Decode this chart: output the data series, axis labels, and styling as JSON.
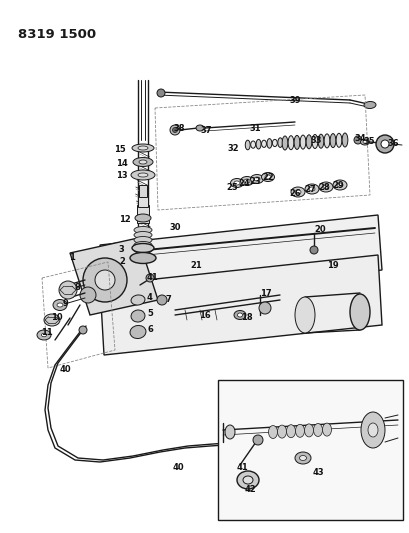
{
  "title": "8319 1500",
  "bg_color": "#ffffff",
  "line_color": "#1a1a1a",
  "label_color": "#111111",
  "fig_width": 4.1,
  "fig_height": 5.33,
  "dpi": 100
}
